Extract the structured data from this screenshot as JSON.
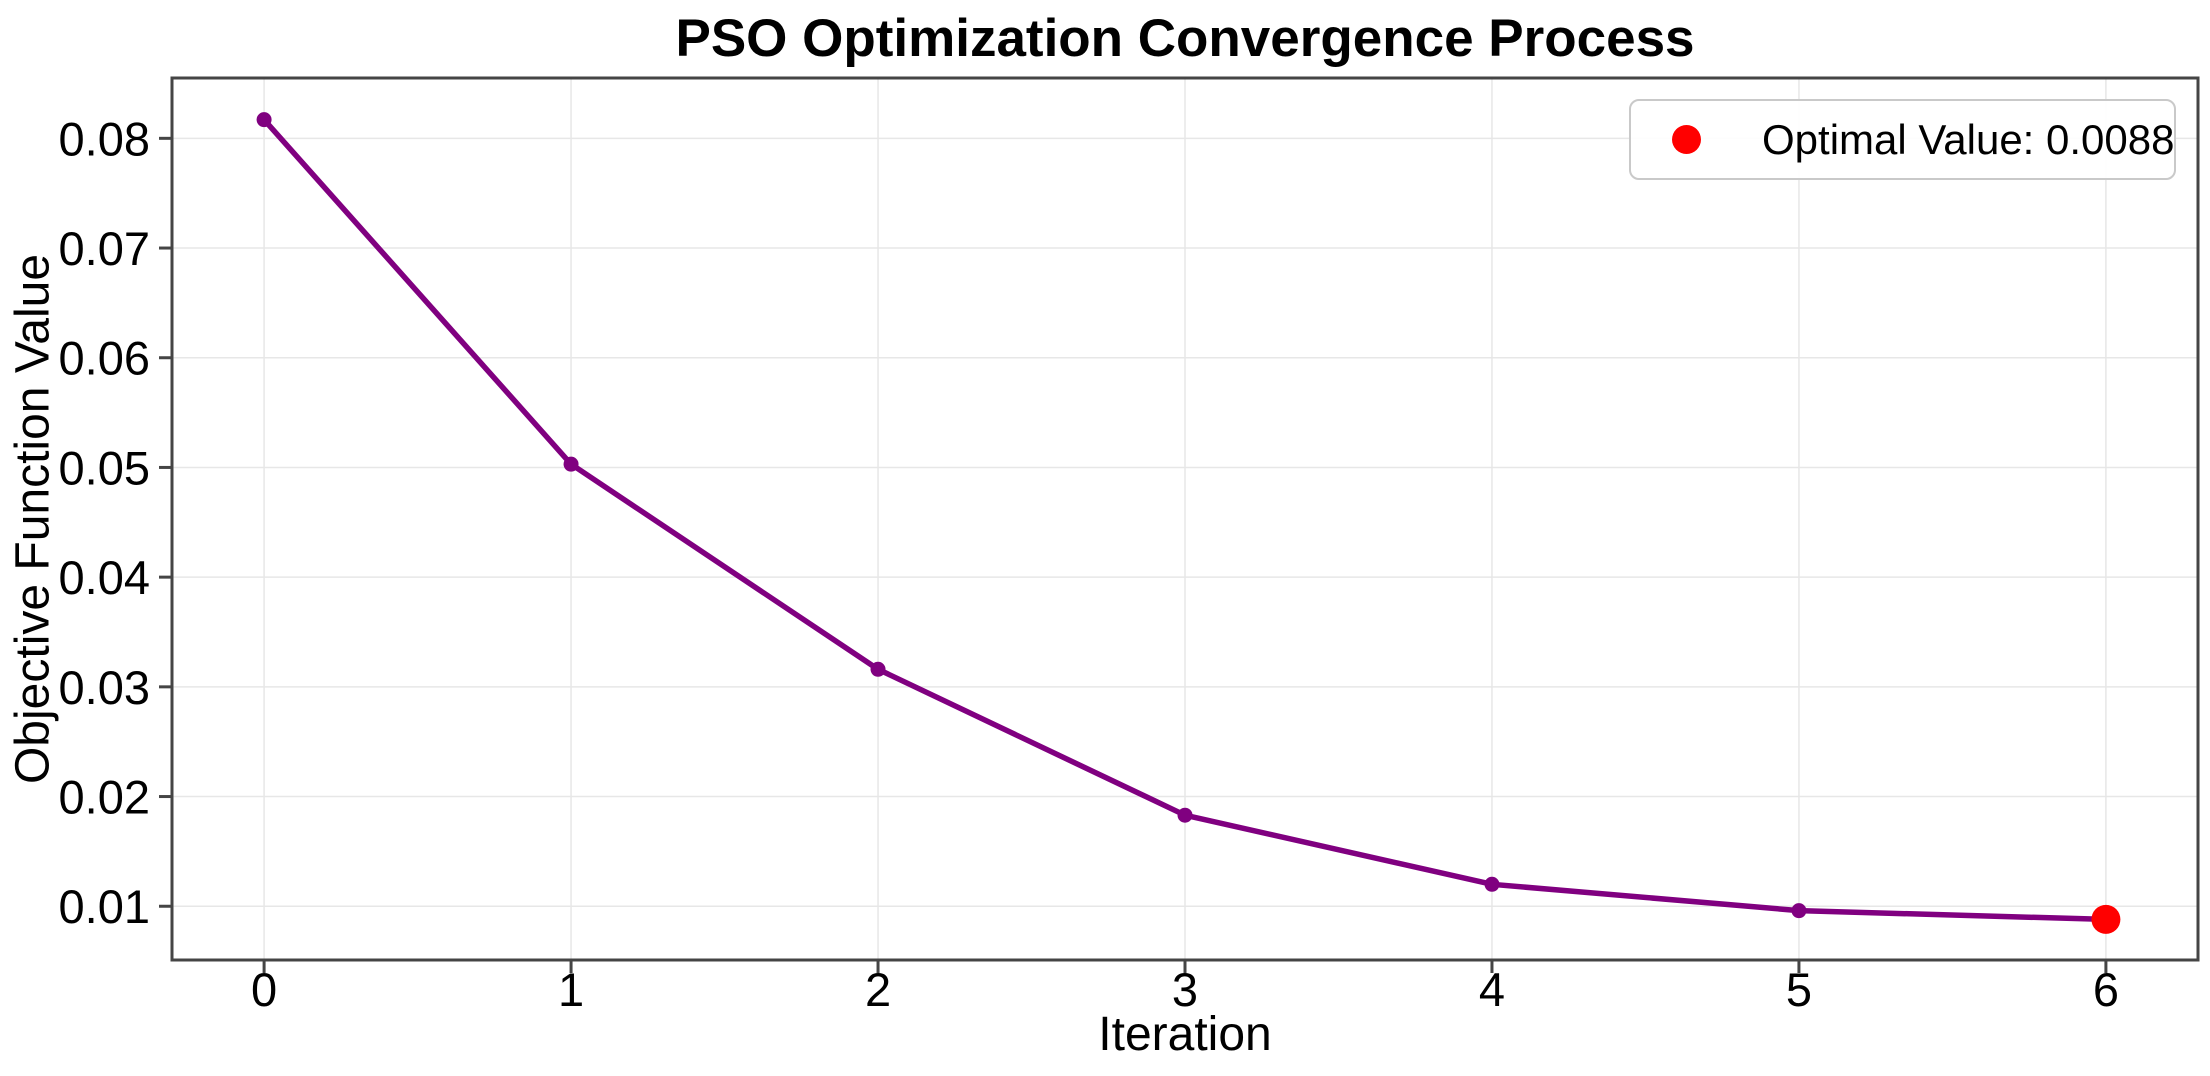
{
  "chart_data": {
    "type": "line",
    "title": "PSO Optimization Convergence Process",
    "xlabel": "Iteration",
    "ylabel": "Objective Function Value",
    "x": [
      0,
      1,
      2,
      3,
      4,
      5,
      6
    ],
    "y": [
      0.0817,
      0.0503,
      0.0316,
      0.0183,
      0.012,
      0.0096,
      0.0088
    ],
    "optimal_point": {
      "x": 6,
      "y": 0.0088
    },
    "legend": {
      "label": "Optimal Value: 0.0088",
      "position": "upper right",
      "marker_color": "#ff0000"
    },
    "xticks": {
      "values": [
        0,
        1,
        2,
        3,
        4,
        5,
        6
      ],
      "labels": [
        "0",
        "1",
        "2",
        "3",
        "4",
        "5",
        "6"
      ]
    },
    "yticks": {
      "values": [
        0.01,
        0.02,
        0.03,
        0.04,
        0.05,
        0.06,
        0.07,
        0.08
      ],
      "labels": [
        "0.01",
        "0.02",
        "0.03",
        "0.04",
        "0.05",
        "0.06",
        "0.07",
        "0.08"
      ]
    },
    "xlim": [
      -0.3,
      6.3
    ],
    "ylim": [
      0.0051,
      0.0855
    ],
    "grid": true,
    "colors": {
      "line": "#800080",
      "marker": "#800080",
      "optimal": "#ff0000",
      "grid": "#e7e7e7",
      "spine": "#454545",
      "text": "#000000",
      "background": "#ffffff"
    }
  }
}
